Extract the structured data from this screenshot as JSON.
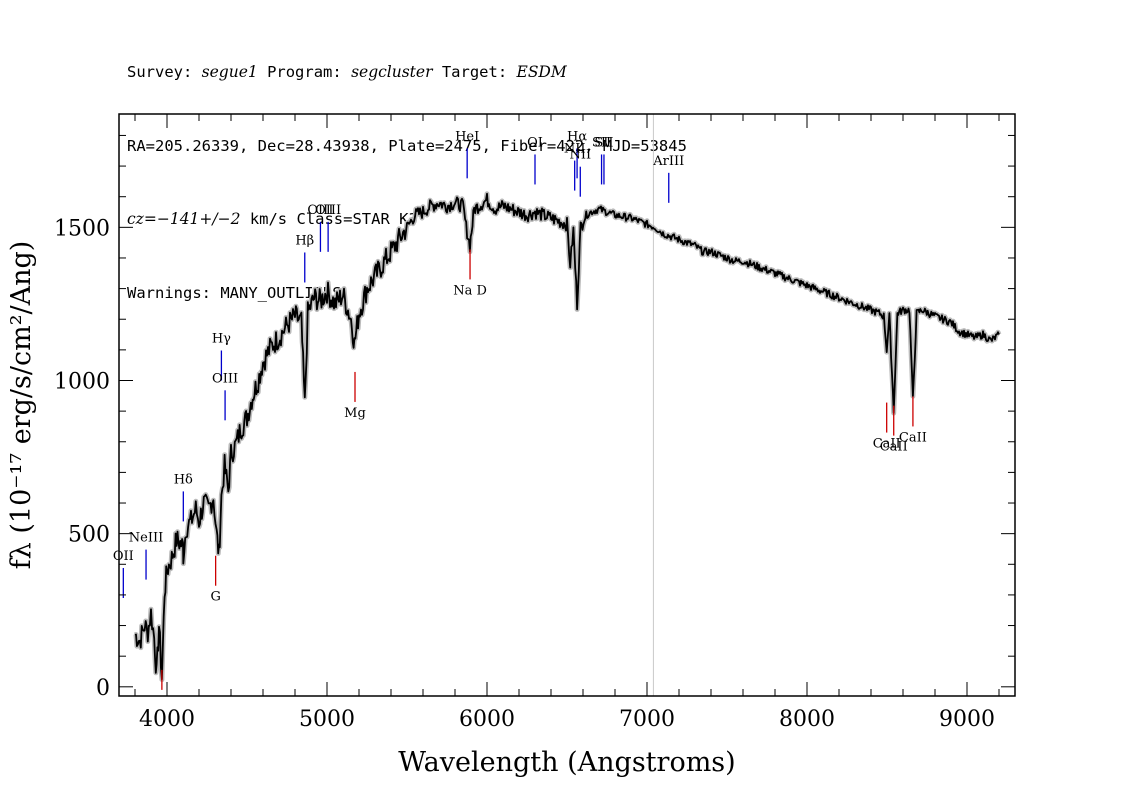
{
  "header": {
    "survey_label": "Survey: ",
    "survey": "segue1",
    "program_label": " Program: ",
    "program": "segcluster",
    "target_label": " Target: ",
    "target": "ESDM",
    "line2": "RA=205.26339, Dec=28.43938, Plate=2475, Fiber=422, MJD=53845",
    "cz_label": "cz=",
    "cz_value": "−141+/−2",
    "cz_rest": " km/s Class=STAR K3",
    "line4": "Warnings: MANY_OUTLIERS"
  },
  "colors": {
    "spectrum": "#000000",
    "error_band": "#bbbbbb",
    "emission_line": "#0000cc",
    "absorption_line": "#cc0000",
    "vertical_marker": "#c8c8c8"
  },
  "chart_data": {
    "type": "line",
    "xlabel": "Wavelength (Angstroms)",
    "ylabel": "fλ (10⁻¹⁷ erg/s/cm²/Ang)",
    "xlim": [
      3700,
      9300
    ],
    "ylim": [
      -30,
      1870
    ],
    "x_ticks": [
      4000,
      5000,
      6000,
      7000,
      8000,
      9000
    ],
    "y_ticks": [
      0,
      500,
      1000,
      1500
    ],
    "vertical_marker_x": 7040,
    "series": [
      {
        "points": [
          [
            3800,
            170
          ],
          [
            3830,
            150
          ],
          [
            3860,
            200
          ],
          [
            3880,
            180
          ],
          [
            3900,
            240
          ],
          [
            3920,
            160
          ],
          [
            3935,
            40
          ],
          [
            3950,
            200
          ],
          [
            3968,
            30
          ],
          [
            3985,
            310
          ],
          [
            4000,
            380
          ],
          [
            4030,
            420
          ],
          [
            4060,
            480
          ],
          [
            4100,
            460
          ],
          [
            4102,
            430
          ],
          [
            4120,
            520
          ],
          [
            4150,
            540
          ],
          [
            4180,
            580
          ],
          [
            4200,
            540
          ],
          [
            4230,
            600
          ],
          [
            4260,
            580
          ],
          [
            4290,
            620
          ],
          [
            4310,
            500
          ],
          [
            4325,
            430
          ],
          [
            4340,
            620
          ],
          [
            4360,
            720
          ],
          [
            4383,
            640
          ],
          [
            4400,
            760
          ],
          [
            4430,
            790
          ],
          [
            4460,
            840
          ],
          [
            4500,
            880
          ],
          [
            4530,
            940
          ],
          [
            4570,
            1000
          ],
          [
            4600,
            1060
          ],
          [
            4650,
            1110
          ],
          [
            4700,
            1140
          ],
          [
            4750,
            1180
          ],
          [
            4800,
            1210
          ],
          [
            4840,
            1190
          ],
          [
            4861,
            920
          ],
          [
            4880,
            1220
          ],
          [
            4920,
            1270
          ],
          [
            4960,
            1260
          ],
          [
            5000,
            1290
          ],
          [
            5050,
            1250
          ],
          [
            5100,
            1280
          ],
          [
            5150,
            1200
          ],
          [
            5172,
            1120
          ],
          [
            5200,
            1220
          ],
          [
            5250,
            1300
          ],
          [
            5300,
            1340
          ],
          [
            5350,
            1380
          ],
          [
            5400,
            1420
          ],
          [
            5450,
            1460
          ],
          [
            5500,
            1500
          ],
          [
            5550,
            1540
          ],
          [
            5600,
            1550
          ],
          [
            5650,
            1570
          ],
          [
            5700,
            1580
          ],
          [
            5750,
            1570
          ],
          [
            5800,
            1580
          ],
          [
            5850,
            1570
          ],
          [
            5870,
            1500
          ],
          [
            5893,
            1440
          ],
          [
            5920,
            1560
          ],
          [
            5950,
            1570
          ],
          [
            6000,
            1590
          ],
          [
            6050,
            1560
          ],
          [
            6100,
            1570
          ],
          [
            6150,
            1560
          ],
          [
            6200,
            1550
          ],
          [
            6250,
            1540
          ],
          [
            6300,
            1550
          ],
          [
            6350,
            1540
          ],
          [
            6400,
            1530
          ],
          [
            6450,
            1520
          ],
          [
            6500,
            1510
          ],
          [
            6520,
            1380
          ],
          [
            6540,
            1490
          ],
          [
            6563,
            1250
          ],
          [
            6585,
            1500
          ],
          [
            6620,
            1540
          ],
          [
            6650,
            1550
          ],
          [
            6700,
            1560
          ],
          [
            6750,
            1550
          ],
          [
            6800,
            1540
          ],
          [
            6850,
            1535
          ],
          [
            6900,
            1530
          ],
          [
            6950,
            1520
          ],
          [
            7000,
            1510
          ],
          [
            7050,
            1500
          ],
          [
            7100,
            1480
          ],
          [
            7150,
            1470
          ],
          [
            7200,
            1460
          ],
          [
            7250,
            1450
          ],
          [
            7300,
            1440
          ],
          [
            7350,
            1420
          ],
          [
            7400,
            1420
          ],
          [
            7450,
            1410
          ],
          [
            7500,
            1400
          ],
          [
            7550,
            1390
          ],
          [
            7600,
            1390
          ],
          [
            7650,
            1380
          ],
          [
            7700,
            1370
          ],
          [
            7750,
            1360
          ],
          [
            7800,
            1350
          ],
          [
            7850,
            1340
          ],
          [
            7900,
            1330
          ],
          [
            7950,
            1320
          ],
          [
            8000,
            1310
          ],
          [
            8050,
            1300
          ],
          [
            8100,
            1290
          ],
          [
            8150,
            1280
          ],
          [
            8200,
            1270
          ],
          [
            8250,
            1260
          ],
          [
            8300,
            1250
          ],
          [
            8350,
            1240
          ],
          [
            8400,
            1230
          ],
          [
            8450,
            1220
          ],
          [
            8480,
            1210
          ],
          [
            8498,
            1100
          ],
          [
            8515,
            1210
          ],
          [
            8542,
            900
          ],
          [
            8565,
            1220
          ],
          [
            8600,
            1230
          ],
          [
            8640,
            1230
          ],
          [
            8662,
            940
          ],
          [
            8685,
            1220
          ],
          [
            8720,
            1230
          ],
          [
            8760,
            1220
          ],
          [
            8800,
            1210
          ],
          [
            8850,
            1200
          ],
          [
            8900,
            1190
          ],
          [
            8950,
            1160
          ],
          [
            9000,
            1150
          ],
          [
            9050,
            1140
          ],
          [
            9100,
            1150
          ],
          [
            9150,
            1130
          ],
          [
            9200,
            1150
          ]
        ]
      }
    ],
    "emission_lines": [
      {
        "label": "OII",
        "x": 3727,
        "y": 290,
        "len": 100
      },
      {
        "label": "NeIII",
        "x": 3869,
        "y": 350,
        "len": 100
      },
      {
        "label": "Hδ",
        "x": 4102,
        "y": 540,
        "len": 100
      },
      {
        "label": "Hγ",
        "x": 4340,
        "y": 1000,
        "len": 100
      },
      {
        "label": "OIII",
        "x": 4363,
        "y": 870,
        "len": 100
      },
      {
        "label": "Hβ",
        "x": 4861,
        "y": 1320,
        "len": 100
      },
      {
        "label": "OIII",
        "x": 4959,
        "y": 1420,
        "len": 100
      },
      {
        "label": "OIII",
        "x": 5007,
        "y": 1420,
        "len": 100
      },
      {
        "label": "HeI",
        "x": 5876,
        "y": 1660,
        "len": 100
      },
      {
        "label": "OI",
        "x": 6300,
        "y": 1640,
        "len": 100
      },
      {
        "label": "NII",
        "x": 6548,
        "y": 1620,
        "len": 100
      },
      {
        "label": "Hα",
        "x": 6563,
        "y": 1660,
        "len": 100
      },
      {
        "label": "NII",
        "x": 6583,
        "y": 1600,
        "len": 100
      },
      {
        "label": "SII",
        "x": 6716,
        "y": 1640,
        "len": 100
      },
      {
        "label": "SII",
        "x": 6731,
        "y": 1640,
        "len": 100
      },
      {
        "label": "ArIII",
        "x": 7136,
        "y": 1580,
        "len": 100
      }
    ],
    "absorption_lines": [
      {
        "label": "G",
        "x": 4304,
        "y": 330,
        "len": 100
      },
      {
        "label": "Na D",
        "x": 5894,
        "y": 1330,
        "len": 100
      },
      {
        "label": "Mg",
        "x": 5175,
        "y": 930,
        "len": 100
      },
      {
        "label": "CaII",
        "x": 8498,
        "y": 830,
        "len": 100
      },
      {
        "label": "CaII",
        "x": 8542,
        "y": 820,
        "len": 100
      },
      {
        "label": "CaII",
        "x": 8662,
        "y": 850,
        "len": 100
      },
      {
        "label": "",
        "x": 3968,
        "y": -10,
        "len": 60
      }
    ]
  }
}
